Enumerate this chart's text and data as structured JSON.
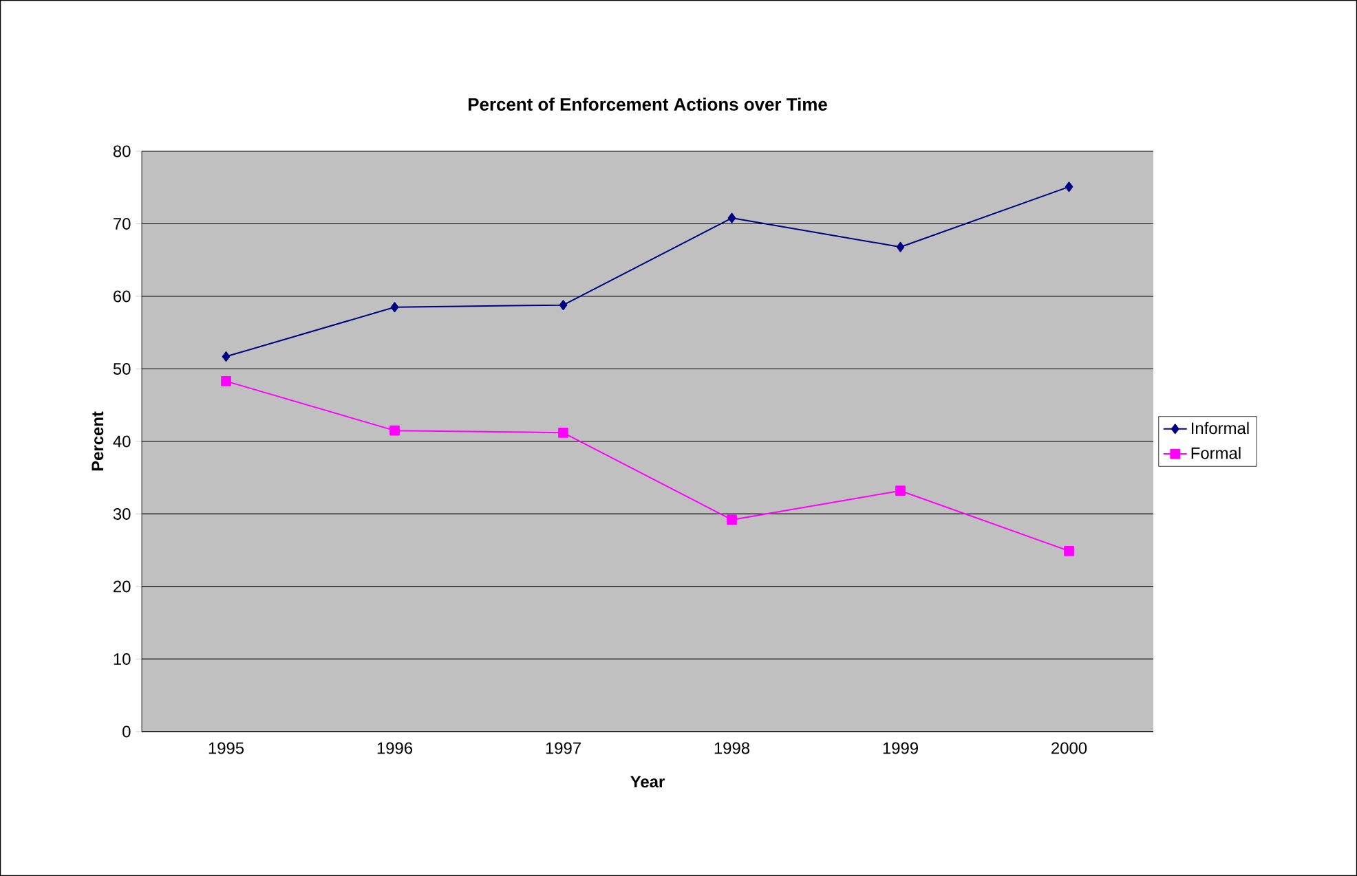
{
  "chart_data": {
    "type": "line",
    "title": "Percent of Enforcement Actions over Time",
    "xlabel": "Year",
    "ylabel": "Percent",
    "categories": [
      "1995",
      "1996",
      "1997",
      "1998",
      "1999",
      "2000"
    ],
    "series": [
      {
        "name": "Informal",
        "color": "#000080",
        "marker": "diamond",
        "values": [
          51.7,
          58.5,
          58.8,
          70.8,
          66.8,
          75.1
        ]
      },
      {
        "name": "Formal",
        "color": "#ff00ff",
        "marker": "square",
        "values": [
          48.3,
          41.5,
          41.2,
          29.2,
          33.2,
          24.9
        ]
      }
    ],
    "ylim": [
      0,
      80
    ],
    "yticks": [
      0,
      10,
      20,
      30,
      40,
      50,
      60,
      70,
      80
    ],
    "grid": "y",
    "legend": "right"
  }
}
